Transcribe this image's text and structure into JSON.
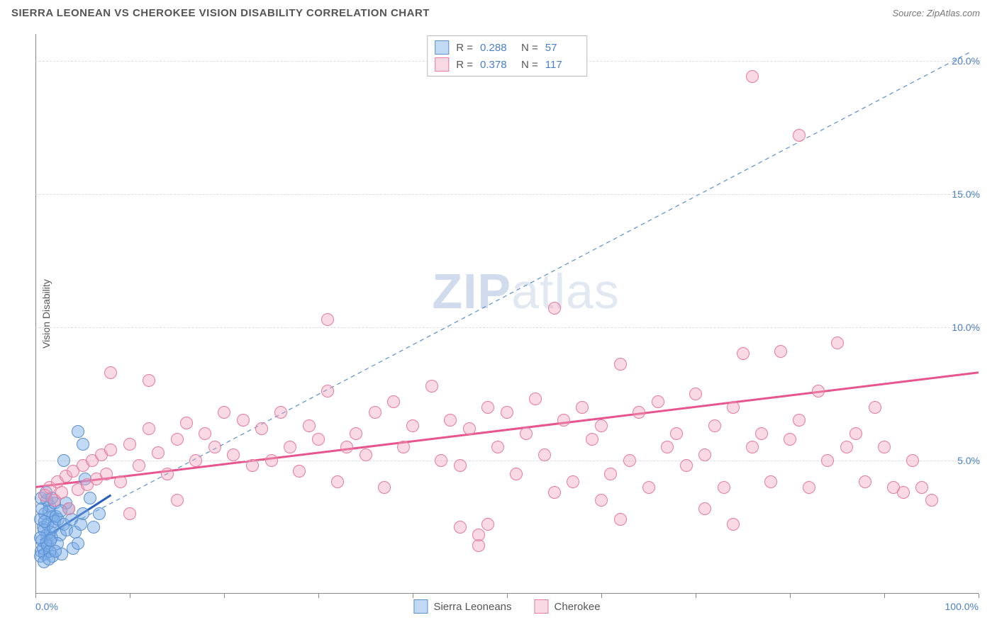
{
  "header": {
    "title": "SIERRA LEONEAN VS CHEROKEE VISION DISABILITY CORRELATION CHART",
    "source_prefix": "Source: ",
    "source_name": "ZipAtlas.com"
  },
  "watermark": {
    "zip": "ZIP",
    "atlas": "atlas"
  },
  "chart": {
    "type": "scatter",
    "background_color": "#ffffff",
    "grid_color": "#dddddd",
    "axis_color": "#888888",
    "tick_label_color": "#4a7fc9",
    "axis_label_color": "#555555",
    "y_axis_label": "Vision Disability",
    "label_fontsize": 14,
    "xlim": [
      0,
      100
    ],
    "ylim": [
      0,
      21
    ],
    "x_ticks": [
      0,
      10,
      20,
      30,
      40,
      50,
      60,
      70,
      80,
      90,
      100
    ],
    "x_tick_labels": {
      "0": "0.0%",
      "100": "100.0%"
    },
    "y_grid": [
      5,
      10,
      15,
      20
    ],
    "y_tick_labels": {
      "5": "5.0%",
      "10": "10.0%",
      "15": "15.0%",
      "20": "20.0%"
    },
    "marker_radius": 9,
    "marker_border_width": 1.5,
    "series": [
      {
        "name": "Sierra Leoneans",
        "fill_color": "rgba(120, 170, 230, 0.45)",
        "stroke_color": "#5a8fd0",
        "r": 0.288,
        "n": 57,
        "trend": {
          "x1": 0.5,
          "y1": 2.0,
          "x2": 8.0,
          "y2": 3.7,
          "color": "#2a5fc0",
          "width": 3,
          "dash": "none"
        },
        "trend_dashed": {
          "x1": 0.5,
          "y1": 2.0,
          "x2": 99,
          "y2": 20.3,
          "color": "#5a8fd0",
          "width": 1.2,
          "dash": "6,5"
        },
        "data": [
          [
            0.5,
            2.8
          ],
          [
            0.8,
            2.5
          ],
          [
            1.0,
            3.0
          ],
          [
            1.2,
            2.2
          ],
          [
            1.5,
            3.3
          ],
          [
            0.7,
            2.0
          ],
          [
            1.3,
            2.6
          ],
          [
            1.8,
            2.9
          ],
          [
            0.6,
            1.6
          ],
          [
            1.1,
            1.9
          ],
          [
            1.6,
            2.3
          ],
          [
            2.0,
            2.7
          ],
          [
            0.9,
            2.4
          ],
          [
            1.4,
            3.1
          ],
          [
            1.7,
            2.1
          ],
          [
            2.2,
            2.9
          ],
          [
            0.5,
            1.4
          ],
          [
            0.8,
            1.7
          ],
          [
            1.0,
            1.5
          ],
          [
            1.3,
            1.8
          ],
          [
            1.9,
            2.5
          ],
          [
            2.4,
            2.8
          ],
          [
            0.7,
            3.2
          ],
          [
            1.5,
            1.6
          ],
          [
            2.0,
            3.4
          ],
          [
            2.6,
            2.2
          ],
          [
            3.0,
            2.6
          ],
          [
            1.2,
            3.5
          ],
          [
            1.8,
            1.4
          ],
          [
            2.3,
            1.9
          ],
          [
            3.3,
            2.4
          ],
          [
            3.8,
            2.8
          ],
          [
            4.2,
            2.3
          ],
          [
            4.8,
            2.6
          ],
          [
            4.0,
            1.7
          ],
          [
            5.0,
            3.0
          ],
          [
            3.5,
            3.2
          ],
          [
            2.8,
            1.5
          ],
          [
            3.2,
            3.4
          ],
          [
            4.5,
            1.9
          ],
          [
            5.3,
            4.3
          ],
          [
            5.8,
            3.6
          ],
          [
            6.2,
            2.5
          ],
          [
            6.8,
            3.0
          ],
          [
            3.0,
            5.0
          ],
          [
            4.5,
            6.1
          ],
          [
            5.0,
            5.6
          ],
          [
            0.6,
            3.6
          ],
          [
            1.1,
            3.8
          ],
          [
            1.7,
            3.6
          ],
          [
            0.9,
            1.2
          ],
          [
            1.4,
            1.3
          ],
          [
            2.1,
            1.6
          ],
          [
            2.7,
            3.1
          ],
          [
            0.5,
            2.1
          ],
          [
            1.0,
            2.7
          ],
          [
            1.6,
            2.0
          ]
        ]
      },
      {
        "name": "Cherokee",
        "fill_color": "rgba(240, 160, 185, 0.40)",
        "stroke_color": "#e67aa0",
        "r": 0.378,
        "n": 117,
        "trend": {
          "x1": 0,
          "y1": 4.0,
          "x2": 100,
          "y2": 8.3,
          "color": "#e65590",
          "width": 3,
          "dash": "none"
        },
        "data": [
          [
            1.0,
            3.7
          ],
          [
            1.5,
            4.0
          ],
          [
            2.0,
            3.5
          ],
          [
            2.3,
            4.2
          ],
          [
            2.8,
            3.8
          ],
          [
            3.2,
            4.4
          ],
          [
            3.5,
            3.2
          ],
          [
            4.0,
            4.6
          ],
          [
            4.5,
            3.9
          ],
          [
            5.0,
            4.8
          ],
          [
            5.5,
            4.1
          ],
          [
            6.0,
            5.0
          ],
          [
            6.5,
            4.3
          ],
          [
            7.0,
            5.2
          ],
          [
            7.5,
            4.5
          ],
          [
            8.0,
            5.4
          ],
          [
            9.0,
            4.2
          ],
          [
            10.0,
            5.6
          ],
          [
            11.0,
            4.8
          ],
          [
            12.0,
            6.2
          ],
          [
            13.0,
            5.3
          ],
          [
            14.0,
            4.5
          ],
          [
            15.0,
            5.8
          ],
          [
            16.0,
            6.4
          ],
          [
            17.0,
            5.0
          ],
          [
            18.0,
            6.0
          ],
          [
            19.0,
            5.5
          ],
          [
            20.0,
            6.8
          ],
          [
            21.0,
            5.2
          ],
          [
            22.0,
            6.5
          ],
          [
            23.0,
            4.8
          ],
          [
            24.0,
            6.2
          ],
          [
            25.0,
            5.0
          ],
          [
            26.0,
            6.8
          ],
          [
            27.0,
            5.5
          ],
          [
            28.0,
            4.6
          ],
          [
            29.0,
            6.3
          ],
          [
            30.0,
            5.8
          ],
          [
            31.0,
            7.6
          ],
          [
            32.0,
            4.2
          ],
          [
            33.0,
            5.5
          ],
          [
            34.0,
            6.0
          ],
          [
            35.0,
            5.2
          ],
          [
            36.0,
            6.8
          ],
          [
            37.0,
            4.0
          ],
          [
            38.0,
            7.2
          ],
          [
            39.0,
            5.5
          ],
          [
            40.0,
            6.3
          ],
          [
            42.0,
            7.8
          ],
          [
            43.0,
            5.0
          ],
          [
            44.0,
            6.5
          ],
          [
            45.0,
            4.8
          ],
          [
            46.0,
            6.2
          ],
          [
            47.0,
            1.8
          ],
          [
            48.0,
            7.0
          ],
          [
            49.0,
            5.5
          ],
          [
            50.0,
            6.8
          ],
          [
            51.0,
            4.5
          ],
          [
            52.0,
            6.0
          ],
          [
            53.0,
            7.3
          ],
          [
            54.0,
            5.2
          ],
          [
            55.0,
            3.8
          ],
          [
            31.0,
            10.3
          ],
          [
            56.0,
            6.5
          ],
          [
            57.0,
            4.2
          ],
          [
            58.0,
            7.0
          ],
          [
            59.0,
            5.8
          ],
          [
            60.0,
            6.3
          ],
          [
            61.0,
            4.5
          ],
          [
            62.0,
            8.6
          ],
          [
            63.0,
            5.0
          ],
          [
            64.0,
            6.8
          ],
          [
            65.0,
            4.0
          ],
          [
            66.0,
            7.2
          ],
          [
            67.0,
            5.5
          ],
          [
            47.0,
            2.2
          ],
          [
            48.0,
            2.6
          ],
          [
            68.0,
            6.0
          ],
          [
            69.0,
            4.8
          ],
          [
            70.0,
            7.5
          ],
          [
            71.0,
            5.2
          ],
          [
            72.0,
            6.3
          ],
          [
            45.0,
            2.5
          ],
          [
            73.0,
            4.0
          ],
          [
            74.0,
            7.0
          ],
          [
            62.0,
            2.8
          ],
          [
            75.0,
            9.0
          ],
          [
            76.0,
            5.5
          ],
          [
            77.0,
            6.0
          ],
          [
            78.0,
            4.2
          ],
          [
            79.0,
            9.1
          ],
          [
            60.0,
            3.5
          ],
          [
            80.0,
            5.8
          ],
          [
            81.0,
            6.5
          ],
          [
            82.0,
            4.0
          ],
          [
            83.0,
            7.6
          ],
          [
            74.0,
            2.6
          ],
          [
            84.0,
            5.0
          ],
          [
            85.0,
            9.4
          ],
          [
            86.0,
            5.5
          ],
          [
            87.0,
            6.0
          ],
          [
            55.0,
            10.7
          ],
          [
            88.0,
            4.2
          ],
          [
            89.0,
            7.0
          ],
          [
            71.0,
            3.2
          ],
          [
            90.0,
            5.5
          ],
          [
            91.0,
            4.0
          ],
          [
            92.0,
            3.8
          ],
          [
            93.0,
            5.0
          ],
          [
            81.0,
            17.2
          ],
          [
            76.0,
            19.4
          ],
          [
            94.0,
            4.0
          ],
          [
            95.0,
            3.5
          ],
          [
            8.0,
            8.3
          ],
          [
            12.0,
            8.0
          ],
          [
            10.0,
            3.0
          ],
          [
            15.0,
            3.5
          ]
        ]
      }
    ]
  },
  "legend_top": {
    "r_label": "R =",
    "n_label": "N ="
  },
  "legend_bottom": {
    "items": [
      "Sierra Leoneans",
      "Cherokee"
    ]
  }
}
